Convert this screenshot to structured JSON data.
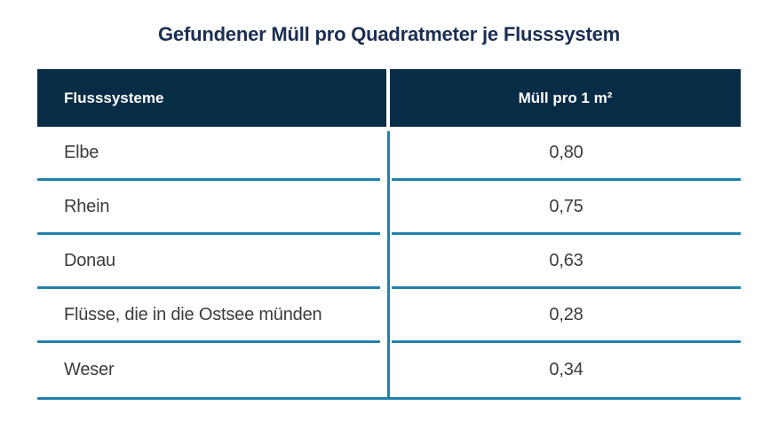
{
  "title": "Gefundener Müll pro Quadratmeter je Flusssystem",
  "table": {
    "columns": [
      "Flusssysteme",
      "Müll pro 1 m²"
    ],
    "rows": [
      {
        "name": "Elbe",
        "value": "0,80"
      },
      {
        "name": "Rhein",
        "value": "0,75"
      },
      {
        "name": "Donau",
        "value": "0,63"
      },
      {
        "name": "Flüsse, die in die Ostsee münden",
        "value": "0,28"
      },
      {
        "name": "Weser",
        "value": "0,34"
      }
    ]
  },
  "chart_data": {
    "type": "table",
    "title": "Gefundener Müll pro Quadratmeter je Flusssystem",
    "columns": [
      "Flusssysteme",
      "Müll pro 1 m²"
    ],
    "categories": [
      "Elbe",
      "Rhein",
      "Donau",
      "Flüsse, die in die Ostsee münden",
      "Weser"
    ],
    "values": [
      0.8,
      0.75,
      0.63,
      0.28,
      0.34
    ],
    "value_format": "comma-decimal"
  },
  "colors": {
    "header_bg": "#072c45",
    "title_text": "#1b2e52",
    "divider_blue": "#1f82ad",
    "body_text": "#3c3c3b",
    "header_text": "#ffffff",
    "background": "#ffffff"
  }
}
